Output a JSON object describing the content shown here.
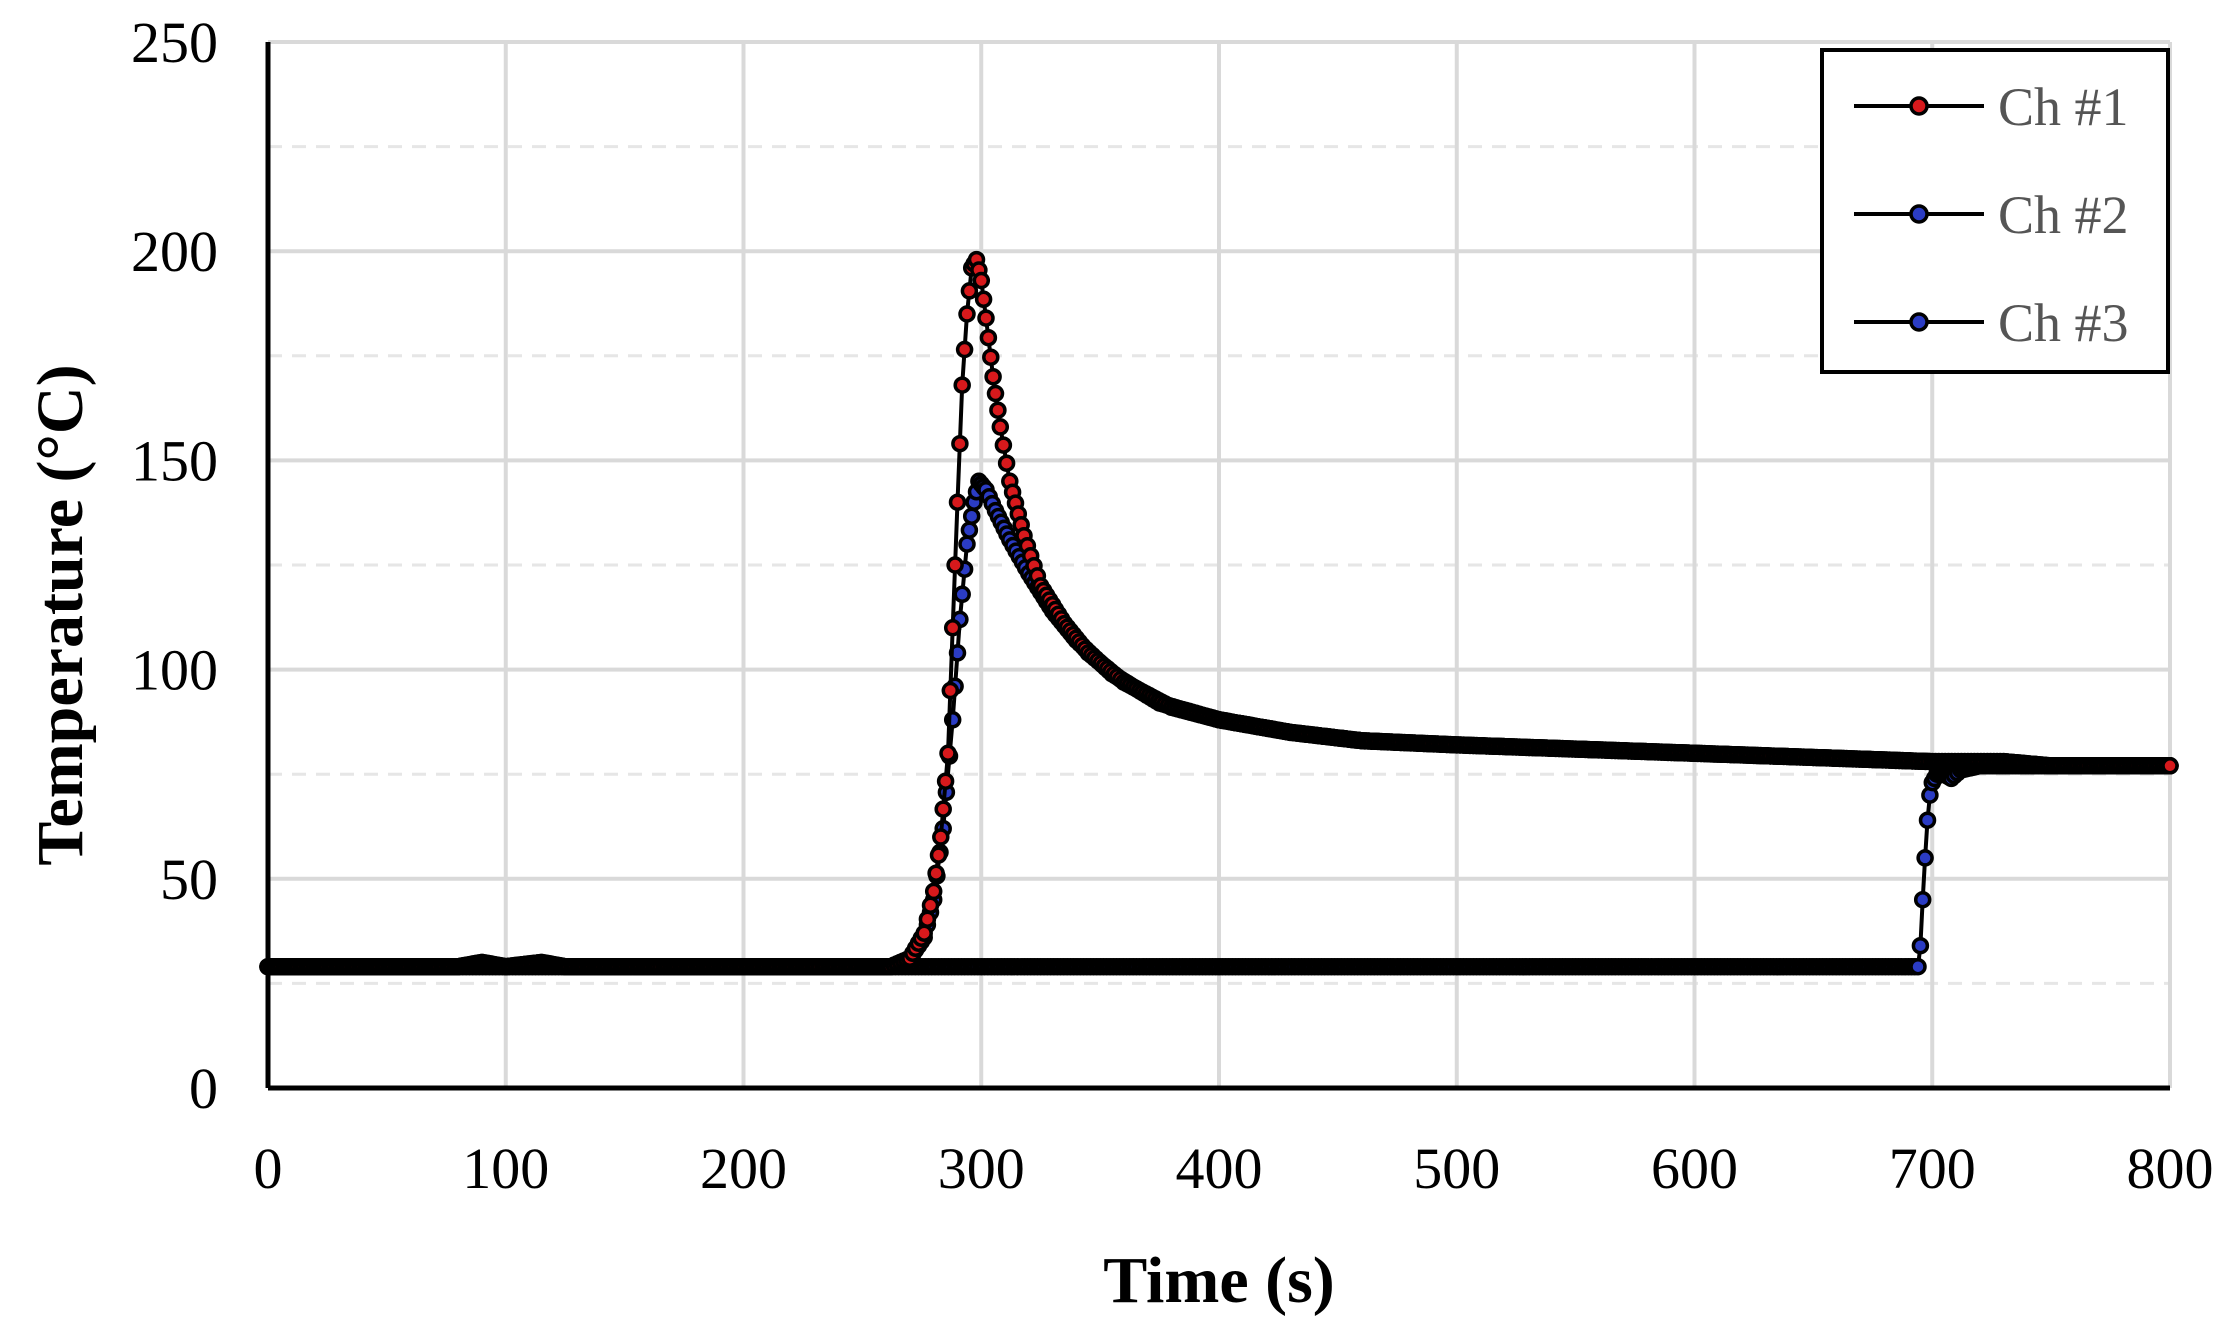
{
  "chart_data": {
    "type": "line",
    "title": "",
    "xlabel": "Time  (s)",
    "ylabel": "Temperature  (°C)",
    "xlim": [
      0,
      800
    ],
    "ylim": [
      0,
      250
    ],
    "x_ticks": [
      0,
      100,
      200,
      300,
      400,
      500,
      600,
      700,
      800
    ],
    "y_ticks": [
      0,
      50,
      100,
      150,
      200,
      250
    ],
    "grid": true,
    "legend_position": "top-right",
    "series": [
      {
        "name": "Ch #1",
        "marker_fill": "#d7191c",
        "points": [
          [
            0,
            29
          ],
          [
            80,
            29
          ],
          [
            90,
            30
          ],
          [
            100,
            29
          ],
          [
            115,
            30
          ],
          [
            125,
            29
          ],
          [
            250,
            29
          ],
          [
            262,
            29
          ],
          [
            270,
            31
          ],
          [
            276,
            37
          ],
          [
            280,
            47
          ],
          [
            283,
            60
          ],
          [
            286,
            80
          ],
          [
            288,
            110
          ],
          [
            290,
            140
          ],
          [
            292,
            168
          ],
          [
            294,
            185
          ],
          [
            296,
            196
          ],
          [
            298,
            198
          ],
          [
            300,
            193
          ],
          [
            302,
            184
          ],
          [
            305,
            170
          ],
          [
            308,
            158
          ],
          [
            312,
            145
          ],
          [
            318,
            132
          ],
          [
            325,
            120
          ],
          [
            335,
            111
          ],
          [
            345,
            104
          ],
          [
            360,
            97
          ],
          [
            380,
            91
          ],
          [
            400,
            88
          ],
          [
            430,
            85
          ],
          [
            460,
            83
          ],
          [
            500,
            82
          ],
          [
            550,
            81
          ],
          [
            600,
            80
          ],
          [
            650,
            79
          ],
          [
            700,
            78
          ],
          [
            730,
            78
          ],
          [
            750,
            77
          ],
          [
            800,
            77
          ]
        ]
      },
      {
        "name": "Ch #2",
        "marker_fill": "#2b3cc4",
        "points": [
          [
            0,
            29
          ],
          [
            80,
            29
          ],
          [
            90,
            30
          ],
          [
            100,
            29
          ],
          [
            115,
            30
          ],
          [
            125,
            29
          ],
          [
            250,
            29
          ],
          [
            262,
            29
          ],
          [
            270,
            31
          ],
          [
            276,
            36
          ],
          [
            280,
            45
          ],
          [
            284,
            62
          ],
          [
            288,
            88
          ],
          [
            291,
            112
          ],
          [
            294,
            130
          ],
          [
            297,
            140
          ],
          [
            299,
            145
          ],
          [
            302,
            143
          ],
          [
            306,
            138
          ],
          [
            312,
            131
          ],
          [
            320,
            123
          ],
          [
            330,
            114
          ],
          [
            340,
            107
          ],
          [
            355,
            99
          ],
          [
            375,
            92
          ],
          [
            400,
            88
          ],
          [
            430,
            85
          ],
          [
            460,
            83
          ],
          [
            500,
            82
          ],
          [
            550,
            81
          ],
          [
            600,
            80
          ],
          [
            650,
            79
          ],
          [
            700,
            78
          ],
          [
            730,
            78
          ],
          [
            750,
            77
          ],
          [
            800,
            77
          ]
        ]
      },
      {
        "name": "Ch #3",
        "marker_fill": "#2b3cc4",
        "points": [
          [
            0,
            29
          ],
          [
            100,
            29
          ],
          [
            200,
            29
          ],
          [
            300,
            29
          ],
          [
            400,
            29
          ],
          [
            500,
            29
          ],
          [
            600,
            29
          ],
          [
            690,
            29
          ],
          [
            694,
            29
          ],
          [
            695,
            34
          ],
          [
            696,
            45
          ],
          [
            697,
            55
          ],
          [
            698,
            64
          ],
          [
            699,
            70
          ],
          [
            700,
            73
          ],
          [
            702,
            75
          ],
          [
            705,
            75
          ],
          [
            708,
            74
          ],
          [
            712,
            76
          ],
          [
            720,
            77
          ],
          [
            750,
            77
          ],
          [
            800,
            77
          ]
        ]
      }
    ]
  }
}
